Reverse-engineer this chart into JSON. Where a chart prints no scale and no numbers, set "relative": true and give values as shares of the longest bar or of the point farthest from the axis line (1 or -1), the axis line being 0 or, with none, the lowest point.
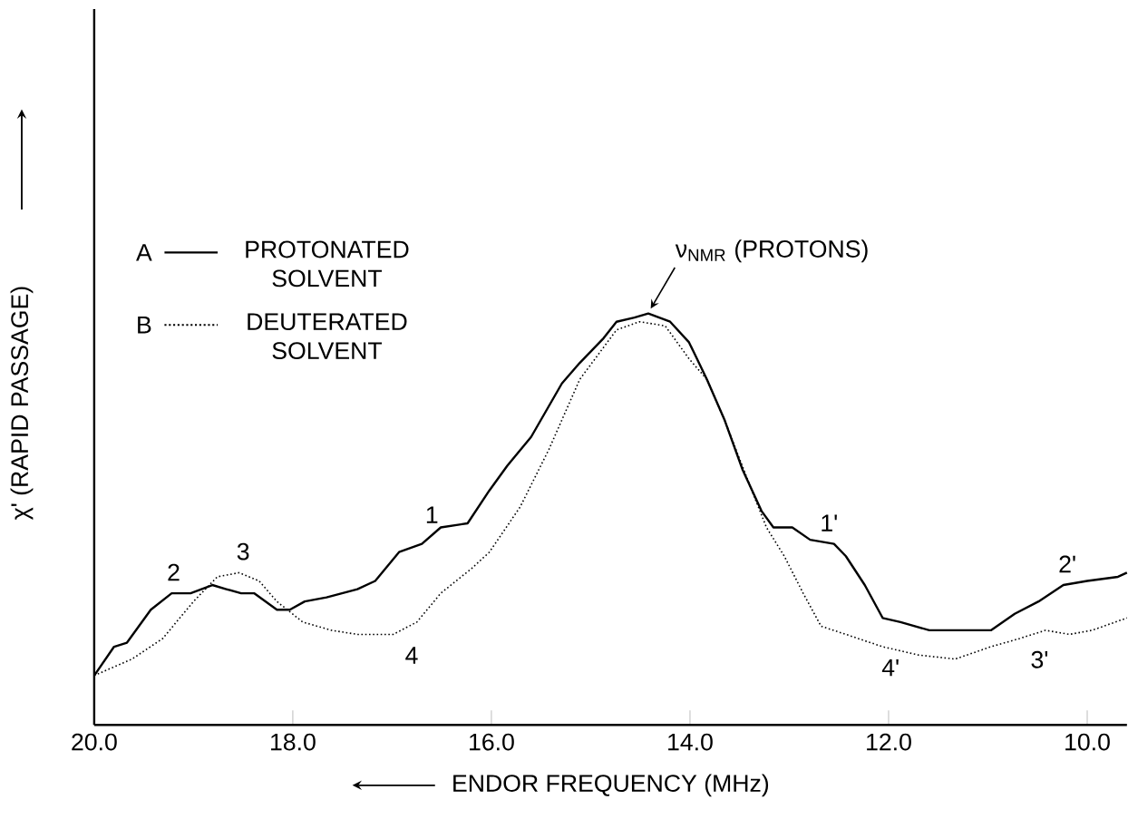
{
  "chart_data": {
    "type": "line",
    "relative": true,
    "xlabel": "ENDOR FREQUENCY (MHz)",
    "ylabel": "χ' (RAPID PASSAGE)",
    "xlim": [
      20.0,
      9.6
    ],
    "xticks": [
      {
        "value": 20,
        "label": "20.0"
      },
      {
        "value": 18,
        "label": "18.0"
      },
      {
        "value": 16,
        "label": "16.0"
      },
      {
        "value": 14,
        "label": "14.0"
      },
      {
        "value": 12,
        "label": "12.0"
      },
      {
        "value": 10,
        "label": "10.0"
      }
    ],
    "legend": "top left",
    "marker": "none",
    "grid": false,
    "series": [
      {
        "name": "PROTONATED SOLVENT",
        "color": "#000000",
        "line_style": "solid",
        "x": [
          20.0,
          19.8,
          19.67,
          19.43,
          19.22,
          19.03,
          18.81,
          18.67,
          18.52,
          18.39,
          18.16,
          18.03,
          17.88,
          17.66,
          17.35,
          17.17,
          16.93,
          16.7,
          16.51,
          16.24,
          16.02,
          15.84,
          15.6,
          15.29,
          15.11,
          14.87,
          14.74,
          14.56,
          14.42,
          14.2,
          14.01,
          13.83,
          13.65,
          13.47,
          13.28,
          13.16,
          12.97,
          12.79,
          12.55,
          12.43,
          12.24,
          12.06,
          11.88,
          11.59,
          11.28,
          10.97,
          10.73,
          10.49,
          10.24,
          10.0,
          9.69,
          9.6
        ],
        "values": [
          0.12,
          0.19,
          0.2,
          0.28,
          0.32,
          0.32,
          0.34,
          0.33,
          0.32,
          0.32,
          0.28,
          0.28,
          0.3,
          0.31,
          0.33,
          0.35,
          0.42,
          0.44,
          0.48,
          0.49,
          0.57,
          0.63,
          0.7,
          0.83,
          0.88,
          0.94,
          0.98,
          0.99,
          1.0,
          0.98,
          0.93,
          0.84,
          0.74,
          0.62,
          0.52,
          0.48,
          0.48,
          0.45,
          0.44,
          0.41,
          0.34,
          0.26,
          0.25,
          0.23,
          0.23,
          0.23,
          0.27,
          0.3,
          0.34,
          0.35,
          0.36,
          0.37
        ]
      },
      {
        "name": "DEUTERATED SOLVENT",
        "color": "#000000",
        "line_style": "dotted",
        "x": [
          20.0,
          19.62,
          19.31,
          19.0,
          18.76,
          18.54,
          18.34,
          18.16,
          17.9,
          17.61,
          17.35,
          16.99,
          16.75,
          16.51,
          16.2,
          16.02,
          15.71,
          15.42,
          15.11,
          14.74,
          14.51,
          14.25,
          14.01,
          13.83,
          13.65,
          13.41,
          13.23,
          13.05,
          12.86,
          12.68,
          12.43,
          12.06,
          11.7,
          11.33,
          10.97,
          10.68,
          10.42,
          10.18,
          9.95,
          9.6
        ],
        "values": [
          0.12,
          0.16,
          0.21,
          0.3,
          0.36,
          0.37,
          0.35,
          0.3,
          0.25,
          0.23,
          0.22,
          0.22,
          0.25,
          0.32,
          0.38,
          0.42,
          0.53,
          0.67,
          0.84,
          0.96,
          0.98,
          0.97,
          0.89,
          0.84,
          0.74,
          0.59,
          0.48,
          0.41,
          0.32,
          0.24,
          0.22,
          0.19,
          0.17,
          0.16,
          0.19,
          0.21,
          0.23,
          0.22,
          0.23,
          0.26
        ]
      }
    ],
    "annotations": [
      "A",
      "B",
      {
        "text": "ν$_{NMR}$ (PROTONS)",
        "x": 14.42,
        "y": 1.0
      },
      {
        "text": "1",
        "x": 16.6,
        "y": 0.46
      },
      {
        "text": "2",
        "x": 19.2,
        "y": 0.32
      },
      {
        "text": "3",
        "x": 18.5,
        "y": 0.37
      },
      {
        "text": "4",
        "x": 16.9,
        "y": 0.22
      },
      {
        "text": "1'",
        "x": 12.6,
        "y": 0.44
      },
      {
        "text": "2'",
        "x": 10.2,
        "y": 0.34
      },
      {
        "text": "3'",
        "x": 10.6,
        "y": 0.21
      },
      {
        "text": "4'",
        "x": 12.1,
        "y": 0.19
      }
    ]
  }
}
